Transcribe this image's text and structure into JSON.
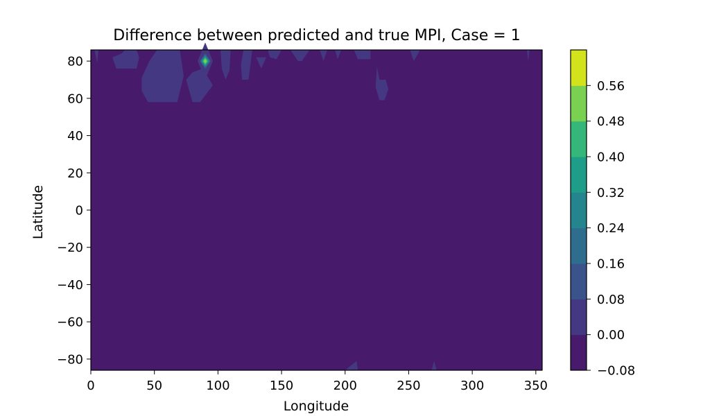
{
  "chart_data": {
    "type": "heatmap",
    "subtype": "filled-contour",
    "title": "Difference between predicted and true MPI, Case = 1",
    "xlabel": "Longitude",
    "ylabel": "Latitude",
    "xlim": [
      0,
      355
    ],
    "ylim": [
      -86,
      86
    ],
    "x_ticks": [
      0,
      50,
      100,
      150,
      200,
      250,
      300,
      350
    ],
    "y_ticks": [
      80,
      60,
      40,
      20,
      0,
      -20,
      -40,
      -60,
      -80
    ],
    "x_tick_labels": [
      "0",
      "50",
      "100",
      "150",
      "200",
      "250",
      "300",
      "350"
    ],
    "y_tick_labels": [
      "80",
      "60",
      "40",
      "20",
      "0",
      "−20",
      "−40",
      "−60",
      "−80"
    ],
    "grid": false,
    "colorbar": {
      "position": "right",
      "levels": [
        -0.08,
        0.0,
        0.08,
        0.16,
        0.24,
        0.32,
        0.4,
        0.48,
        0.56
      ],
      "tick_labels": [
        "−0.08",
        "0.00",
        "0.08",
        "0.16",
        "0.24",
        "0.32",
        "0.40",
        "0.48",
        "0.56"
      ],
      "colors": [
        "#481a6c",
        "#453882",
        "#3a538b",
        "#2e6d8e",
        "#25858e",
        "#1e9d89",
        "#35b779",
        "#7ad151",
        "#d2e21b"
      ]
    },
    "background_band_value_range": [
      -0.08,
      0.0
    ],
    "regions": [
      {
        "band": 1,
        "points": [
          [
            40,
            71
          ],
          [
            46,
            80
          ],
          [
            52,
            86
          ],
          [
            70,
            86
          ],
          [
            73,
            72
          ],
          [
            68,
            58
          ],
          [
            45,
            58
          ],
          [
            40,
            64
          ]
        ]
      },
      {
        "band": 1,
        "points": [
          [
            75,
            70
          ],
          [
            80,
            58
          ],
          [
            86,
            58
          ],
          [
            96,
            67
          ],
          [
            88,
            76
          ],
          [
            80,
            74
          ]
        ]
      },
      {
        "band": 1,
        "points": [
          [
            17,
            82
          ],
          [
            20,
            76
          ],
          [
            36,
            76
          ],
          [
            38,
            82
          ],
          [
            36,
            86
          ],
          [
            27,
            86
          ],
          [
            24,
            84
          ]
        ]
      },
      {
        "band": 1,
        "points": [
          [
            3,
            86
          ],
          [
            6,
            86
          ],
          [
            5,
            79
          ]
        ]
      },
      {
        "band": 1,
        "points": [
          [
            102,
            86
          ],
          [
            110,
            86
          ],
          [
            109,
            75
          ],
          [
            106,
            70
          ],
          [
            103,
            76
          ]
        ]
      },
      {
        "band": 1,
        "points": [
          [
            118,
            78
          ],
          [
            120,
            86
          ],
          [
            127,
            86
          ],
          [
            124,
            70
          ],
          [
            119,
            70
          ]
        ]
      },
      {
        "band": 1,
        "points": [
          [
            130,
            82
          ],
          [
            138,
            82
          ],
          [
            134,
            76
          ]
        ]
      },
      {
        "band": 1,
        "points": [
          [
            139,
            86
          ],
          [
            150,
            86
          ],
          [
            146,
            81
          ],
          [
            141,
            82
          ]
        ]
      },
      {
        "band": 1,
        "points": [
          [
            157,
            86
          ],
          [
            172,
            86
          ],
          [
            166,
            80
          ],
          [
            163,
            80
          ]
        ]
      },
      {
        "band": 1,
        "points": [
          [
            180,
            86
          ],
          [
            186,
            86
          ],
          [
            183,
            80
          ]
        ]
      },
      {
        "band": 1,
        "points": [
          [
            192,
            86
          ],
          [
            197,
            86
          ],
          [
            194,
            81
          ]
        ]
      },
      {
        "band": 1,
        "points": [
          [
            207,
            86
          ],
          [
            220,
            86
          ],
          [
            220,
            81
          ],
          [
            210,
            81
          ]
        ]
      },
      {
        "band": 1,
        "points": [
          [
            225,
            77
          ],
          [
            227,
            70
          ],
          [
            232,
            70
          ],
          [
            234,
            65
          ],
          [
            231,
            59
          ],
          [
            227,
            59
          ],
          [
            224,
            66
          ]
        ]
      },
      {
        "band": 1,
        "points": [
          [
            251,
            86
          ],
          [
            259,
            86
          ],
          [
            254,
            80
          ]
        ]
      },
      {
        "band": 1,
        "points": [
          [
            343,
            86
          ],
          [
            345,
            86
          ],
          [
            344,
            80
          ]
        ]
      },
      {
        "band": 1,
        "points": [
          [
            200,
            -86
          ],
          [
            210,
            -86
          ],
          [
            209,
            -81
          ]
        ]
      },
      {
        "band": 1,
        "points": [
          [
            268,
            -86
          ],
          [
            272,
            -86
          ],
          [
            270,
            -81
          ]
        ]
      },
      {
        "band": 1,
        "points": [
          [
            84,
            80
          ],
          [
            90,
            90
          ],
          [
            96,
            80
          ],
          [
            90,
            70
          ]
        ]
      }
    ],
    "peak": {
      "lon": 90,
      "lat": 80,
      "value": 0.53
    }
  }
}
